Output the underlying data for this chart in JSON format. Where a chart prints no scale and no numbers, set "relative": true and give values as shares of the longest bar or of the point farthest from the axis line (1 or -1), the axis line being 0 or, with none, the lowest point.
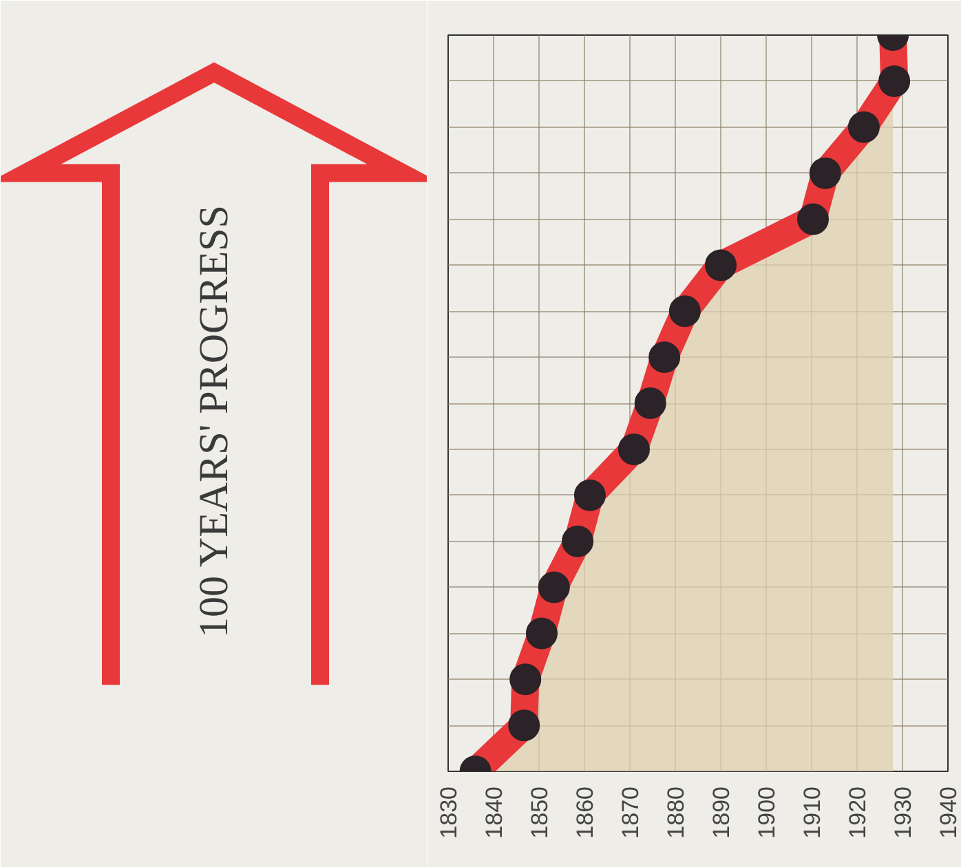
{
  "chart_data": {
    "type": "area",
    "relative": true,
    "annotations": [
      "100 YEARS' PROGRESS"
    ],
    "x": [
      1836,
      1846.7,
      1847,
      1850.6,
      1853.3,
      1858.5,
      1861.2,
      1870.9,
      1874.5,
      1877.6,
      1882.1,
      1890,
      1910.3,
      1913,
      1921.5,
      1928.2,
      1927.9
    ],
    "series": [
      {
        "color": "#e8383a",
        "values": [
          0,
          0.0625,
          0.125,
          0.1875,
          0.25,
          0.3125,
          0.375,
          0.4375,
          0.5,
          0.5625,
          0.625,
          0.6875,
          0.75,
          0.8125,
          0.875,
          0.9375,
          1
        ]
      }
    ],
    "xlim": [
      1830,
      1940
    ],
    "xticks": [
      1830,
      1840,
      1850,
      1860,
      1870,
      1880,
      1890,
      1900,
      1910,
      1920,
      1930,
      1940
    ],
    "grid": true,
    "marker": "circle"
  }
}
